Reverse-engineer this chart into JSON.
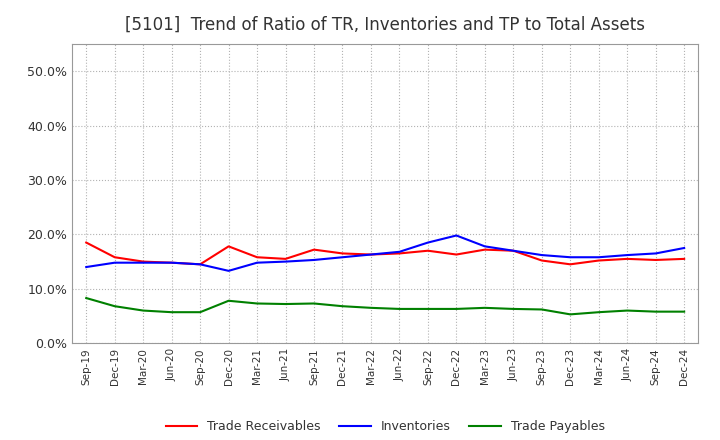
{
  "title": "[5101]  Trend of Ratio of TR, Inventories and TP to Total Assets",
  "title_fontsize": 12,
  "title_color": "#333333",
  "background_color": "#ffffff",
  "grid_color": "#aaaaaa",
  "ylim": [
    0.0,
    0.55
  ],
  "yticks": [
    0.0,
    0.1,
    0.2,
    0.3,
    0.4,
    0.5
  ],
  "x_labels": [
    "Sep-19",
    "Dec-19",
    "Mar-20",
    "Jun-20",
    "Sep-20",
    "Dec-20",
    "Mar-21",
    "Jun-21",
    "Sep-21",
    "Dec-21",
    "Mar-22",
    "Jun-22",
    "Sep-22",
    "Dec-22",
    "Mar-23",
    "Jun-23",
    "Sep-23",
    "Dec-23",
    "Mar-24",
    "Jun-24",
    "Sep-24",
    "Dec-24"
  ],
  "trade_receivables": [
    0.185,
    0.158,
    0.15,
    0.148,
    0.145,
    0.178,
    0.158,
    0.155,
    0.172,
    0.165,
    0.163,
    0.165,
    0.17,
    0.163,
    0.172,
    0.17,
    0.152,
    0.145,
    0.152,
    0.155,
    0.153,
    0.155
  ],
  "inventories": [
    0.14,
    0.148,
    0.148,
    0.148,
    0.145,
    0.133,
    0.148,
    0.15,
    0.153,
    0.158,
    0.163,
    0.168,
    0.185,
    0.198,
    0.178,
    0.17,
    0.162,
    0.158,
    0.158,
    0.162,
    0.165,
    0.175
  ],
  "trade_payables": [
    0.083,
    0.068,
    0.06,
    0.057,
    0.057,
    0.078,
    0.073,
    0.072,
    0.073,
    0.068,
    0.065,
    0.063,
    0.063,
    0.063,
    0.065,
    0.063,
    0.062,
    0.053,
    0.057,
    0.06,
    0.058,
    0.058
  ],
  "line_colors": {
    "trade_receivables": "#ff0000",
    "inventories": "#0000ff",
    "trade_payables": "#008000"
  },
  "legend_labels": [
    "Trade Receivables",
    "Inventories",
    "Trade Payables"
  ],
  "legend_ncol": 3
}
